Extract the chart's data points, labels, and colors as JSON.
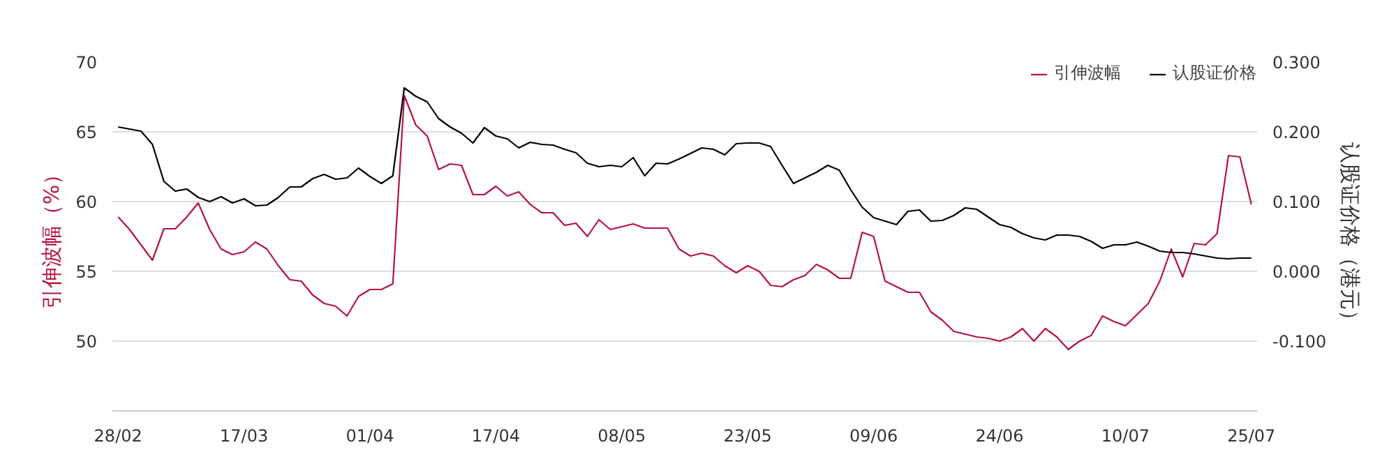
{
  "chart_data": {
    "type": "line",
    "ylabel": "引伸波幅（%）",
    "y2label": "认股证价格（港元）",
    "categories": [
      "28/02",
      null,
      null,
      null,
      null,
      null,
      null,
      null,
      null,
      null,
      null,
      "17/03",
      null,
      null,
      null,
      null,
      null,
      null,
      null,
      null,
      null,
      null,
      "01/04",
      null,
      null,
      null,
      null,
      null,
      null,
      null,
      null,
      null,
      null,
      "17/04",
      null,
      null,
      null,
      null,
      null,
      null,
      null,
      null,
      null,
      null,
      "08/05",
      null,
      null,
      null,
      null,
      null,
      null,
      null,
      null,
      null,
      null,
      "23/05",
      null,
      null,
      null,
      null,
      null,
      null,
      null,
      null,
      null,
      null,
      "09/06",
      null,
      null,
      null,
      null,
      null,
      null,
      null,
      null,
      null,
      null,
      "24/06",
      null,
      null,
      null,
      null,
      null,
      null,
      null,
      null,
      null,
      null,
      "10/07",
      null,
      null,
      null,
      null,
      null,
      null,
      null,
      null,
      null,
      null,
      "25/07"
    ],
    "series": [
      {
        "name": "引伸波幅",
        "color": "#b5133f",
        "axis": "y",
        "values": [
          58.9,
          58.0,
          56.9,
          55.8,
          58.05,
          58.05,
          58.9,
          59.9,
          58.0,
          56.6,
          56.2,
          56.4,
          57.1,
          56.6,
          55.4,
          54.4,
          54.3,
          53.3,
          52.7,
          52.5,
          51.8,
          53.2,
          53.7,
          53.7,
          54.1,
          67.6,
          65.5,
          64.7,
          62.3,
          62.7,
          62.6,
          60.5,
          60.5,
          61.1,
          60.4,
          60.7,
          59.8,
          59.2,
          59.2,
          58.3,
          58.45,
          57.5,
          58.7,
          58.0,
          58.2,
          58.4,
          58.1,
          58.1,
          58.1,
          56.6,
          56.1,
          56.3,
          56.1,
          55.4,
          54.9,
          55.4,
          55.0,
          54.0,
          53.9,
          54.4,
          54.7,
          55.5,
          55.1,
          54.5,
          54.5,
          57.8,
          57.5,
          54.3,
          53.9,
          53.5,
          53.5,
          52.1,
          51.5,
          50.7,
          50.5,
          50.3,
          50.2,
          50.0,
          50.3,
          50.9,
          50.0,
          50.9,
          50.3,
          49.4,
          50.0,
          50.4,
          51.8,
          51.4,
          51.1,
          51.9,
          52.7,
          54.3,
          56.6,
          54.6,
          57.0,
          56.9,
          57.7,
          63.3,
          63.2,
          59.8
        ]
      },
      {
        "name": "认股证价格",
        "color": "#000000",
        "axis": "y2",
        "values": [
          0.207,
          0.204,
          0.201,
          0.182,
          0.129,
          0.115,
          0.118,
          0.106,
          0.1,
          0.107,
          0.098,
          0.104,
          0.094,
          0.095,
          0.106,
          0.121,
          0.121,
          0.133,
          0.139,
          0.132,
          0.134,
          0.148,
          0.136,
          0.126,
          0.137,
          0.263,
          0.251,
          0.243,
          0.219,
          0.207,
          0.198,
          0.184,
          0.206,
          0.194,
          0.19,
          0.177,
          0.185,
          0.182,
          0.181,
          0.175,
          0.17,
          0.155,
          0.15,
          0.152,
          0.15,
          0.163,
          0.137,
          0.155,
          0.154,
          0.161,
          0.169,
          0.177,
          0.175,
          0.167,
          0.183,
          0.184,
          0.184,
          0.179,
          0.152,
          0.126,
          0.134,
          0.142,
          0.152,
          0.145,
          0.117,
          0.092,
          0.077,
          0.072,
          0.067,
          0.086,
          0.088,
          0.072,
          0.073,
          0.08,
          0.091,
          0.089,
          0.078,
          0.067,
          0.063,
          0.054,
          0.048,
          0.045,
          0.052,
          0.052,
          0.05,
          0.043,
          0.033,
          0.038,
          0.038,
          0.042,
          0.036,
          0.029,
          0.027,
          0.027,
          0.025,
          0.022,
          0.019,
          0.018,
          0.019,
          0.019
        ]
      }
    ],
    "ylim": [
      45,
      70
    ],
    "yticks": [
      50,
      55,
      60,
      65,
      70
    ],
    "y2lim": [
      -0.2,
      0.3
    ],
    "y2ticks": [
      {
        "value": -0.1,
        "label": "-0.100"
      },
      {
        "value": 0,
        "label": "0.000"
      },
      {
        "value": 0.1,
        "label": "0.100"
      },
      {
        "value": 0.2,
        "label": "0.200"
      },
      {
        "value": 0.3,
        "label": "0.300"
      }
    ],
    "grid": "y",
    "legend": "top right"
  }
}
